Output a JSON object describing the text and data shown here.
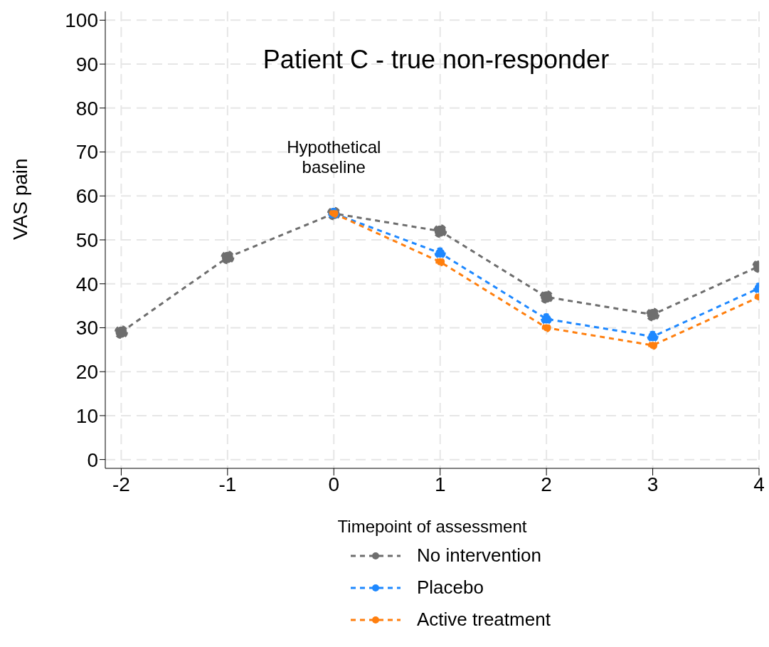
{
  "chart_data": {
    "type": "line",
    "title": "Patient C - true non-responder",
    "xlabel": "Timepoint of assessment",
    "ylabel": "VAS pain",
    "x": [
      -2,
      -1,
      0,
      1,
      2,
      3,
      4
    ],
    "series": [
      {
        "name": "No intervention",
        "color": "#6e6e6e",
        "values": [
          29,
          46,
          56,
          52,
          37,
          33,
          44
        ]
      },
      {
        "name": "Placebo",
        "color": "#1e88ff",
        "values": [
          null,
          null,
          56,
          47,
          32,
          28,
          39
        ]
      },
      {
        "name": "Active treatment",
        "color": "#ff7f0e",
        "values": [
          null,
          null,
          56,
          45,
          30,
          26,
          37
        ]
      }
    ],
    "xlim": [
      -2.15,
      4
    ],
    "xticks": [
      -2,
      -1,
      0,
      1,
      2,
      3,
      4
    ],
    "ylim": [
      -2,
      102
    ],
    "yticks": [
      0,
      10,
      20,
      30,
      40,
      50,
      60,
      70,
      80,
      90,
      100
    ],
    "grid": true,
    "legend": "bottom",
    "marker": "circle",
    "line_style": "dashed",
    "annotations": [
      {
        "text": "Hypothetical baseline",
        "x": 0,
        "y": 56
      }
    ]
  }
}
